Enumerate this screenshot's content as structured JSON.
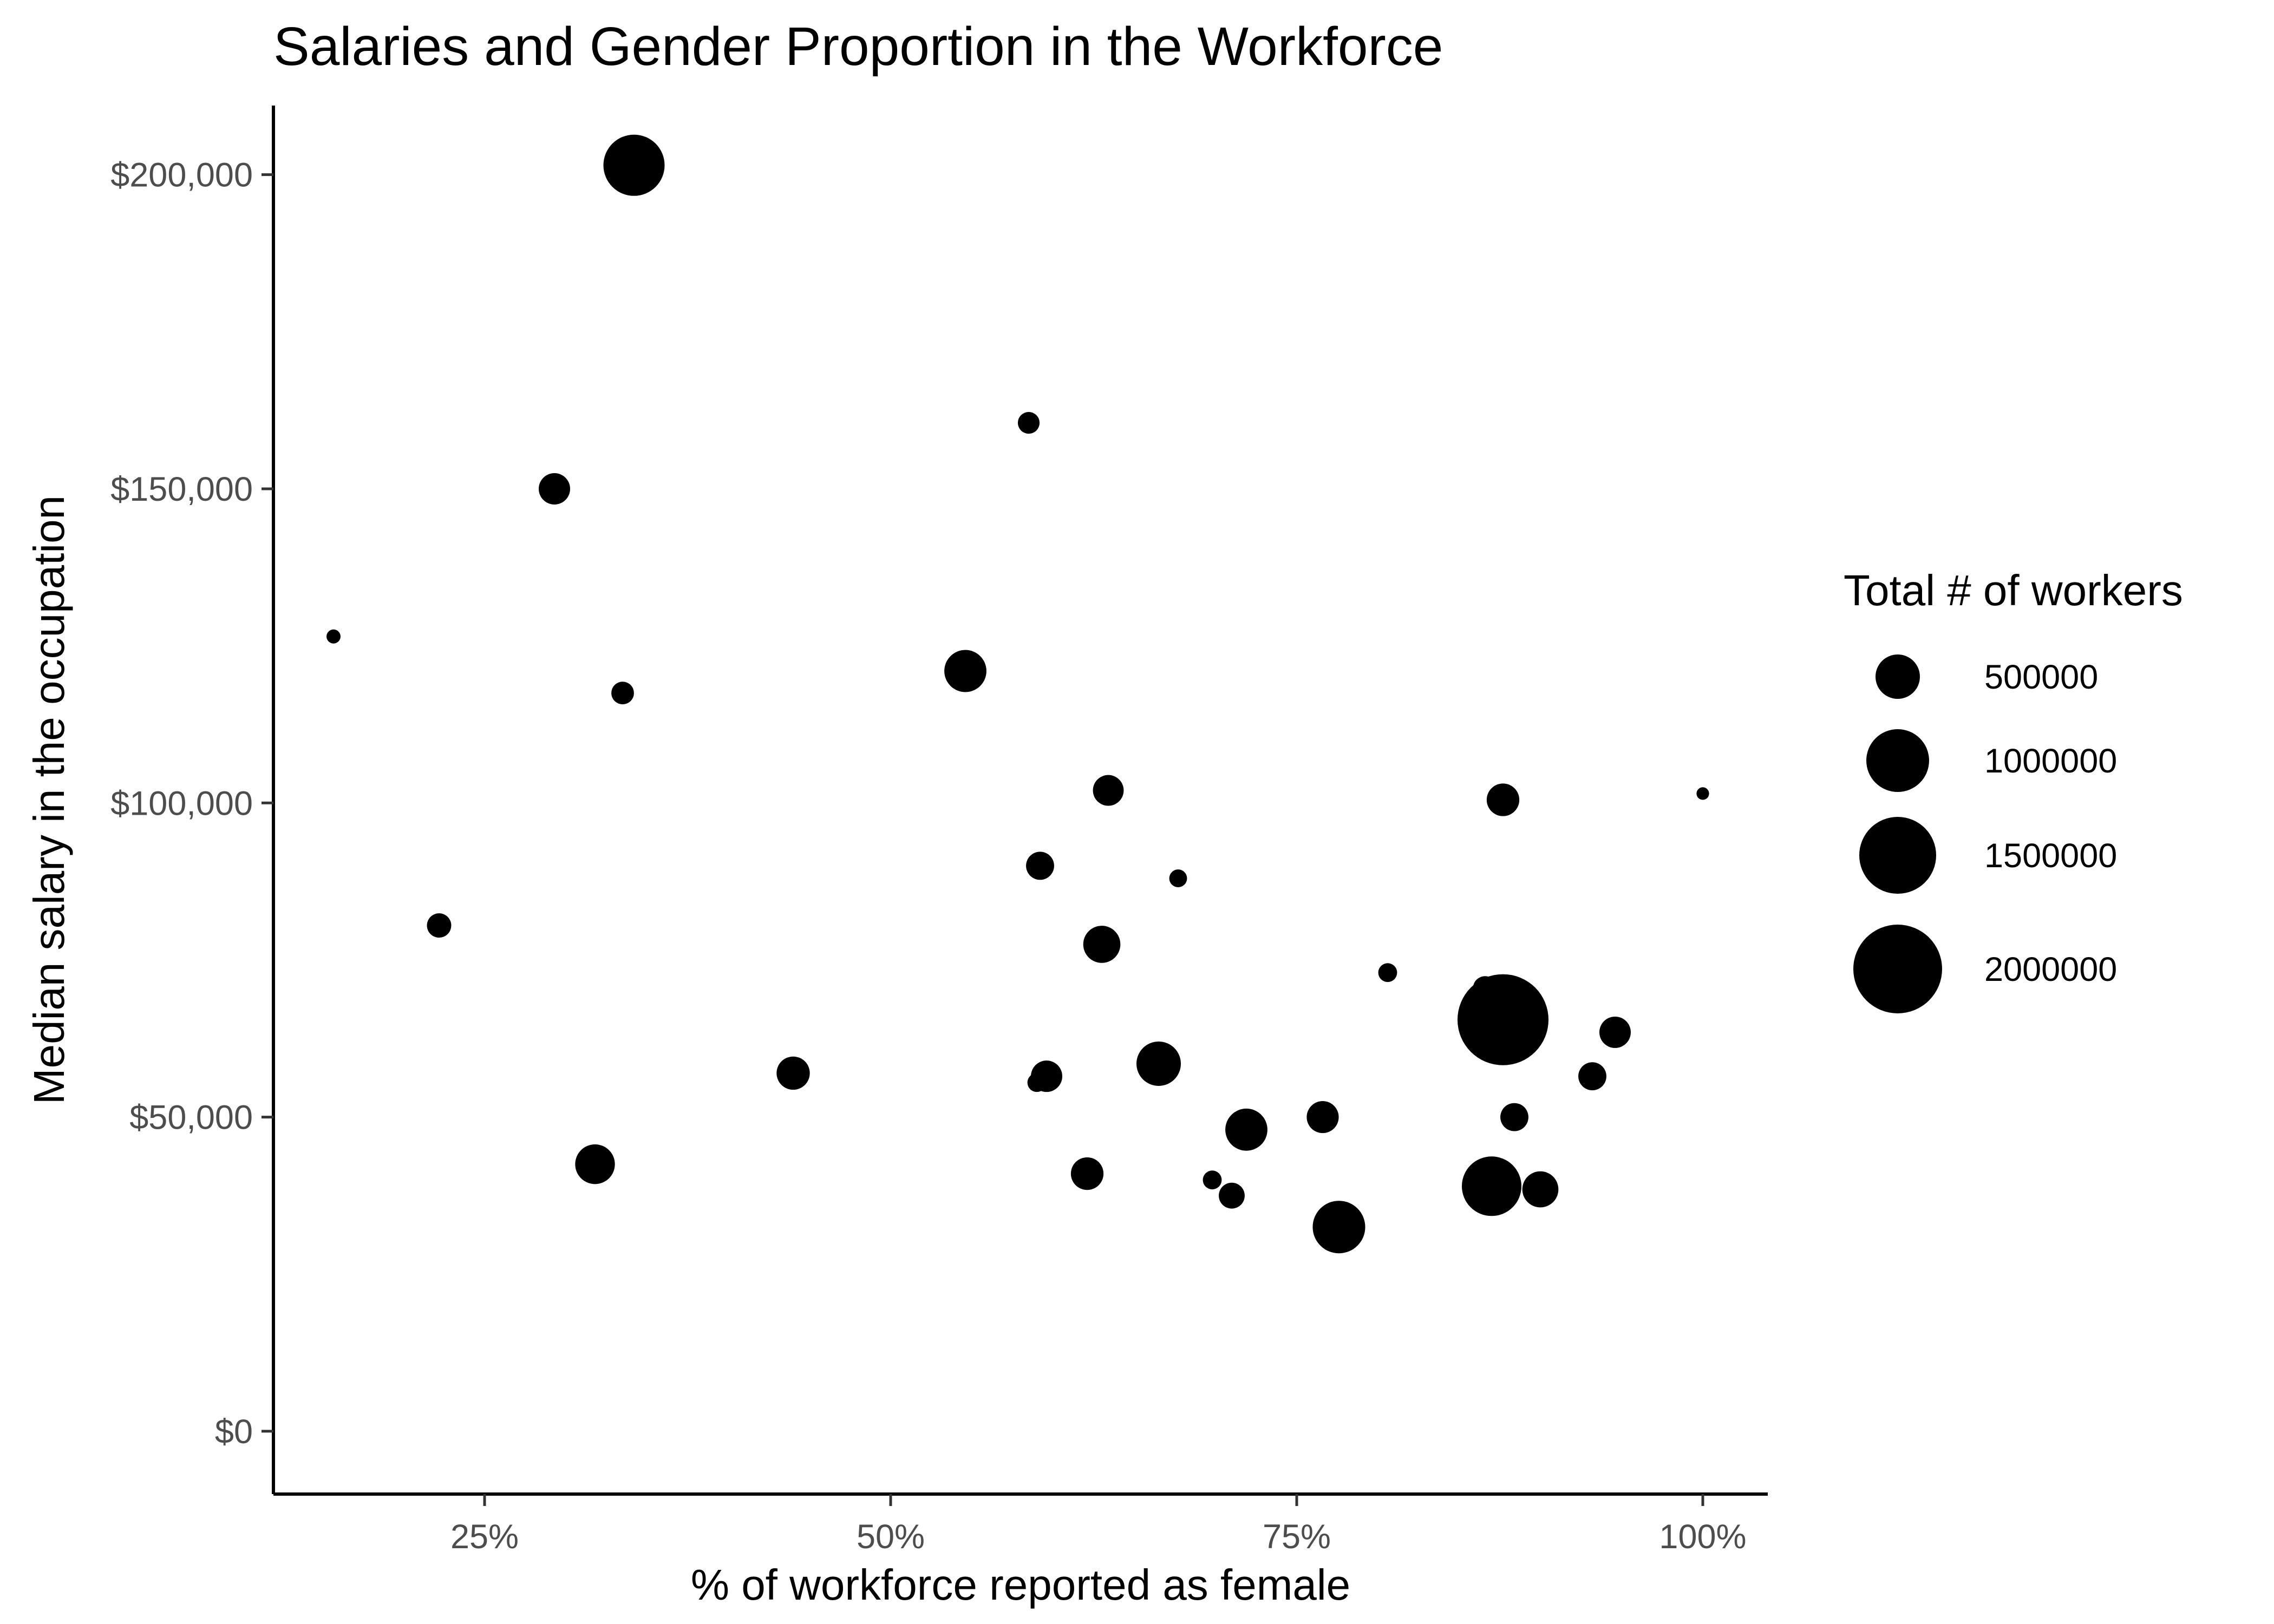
{
  "chart_data": {
    "type": "scatter",
    "title": "Salaries and Gender Proportion in the Workforce",
    "xlabel": "% of workforce reported as female",
    "ylabel": "Median salary in the occupation",
    "xlim": [
      0.12,
      1.04
    ],
    "ylim": [
      -10000,
      211000
    ],
    "x_ticks": [
      {
        "value": 0.25,
        "label": "25%"
      },
      {
        "value": 0.5,
        "label": "50%"
      },
      {
        "value": 0.75,
        "label": "75%"
      },
      {
        "value": 1.0,
        "label": "100%"
      }
    ],
    "y_ticks": [
      {
        "value": 0,
        "label": "$0"
      },
      {
        "value": 50000,
        "label": "$50,000"
      },
      {
        "value": 100000,
        "label": "$100,000"
      },
      {
        "value": 150000,
        "label": "$150,000"
      },
      {
        "value": 200000,
        "label": "$200,000"
      }
    ],
    "grid": false,
    "size_legend": {
      "title": "Total # of workers",
      "placement": "right",
      "entries": [
        {
          "value": 500000,
          "label": "500000"
        },
        {
          "value": 1000000,
          "label": "1000000"
        },
        {
          "value": 1500000,
          "label": "1500000"
        },
        {
          "value": 2000000,
          "label": "2000000"
        }
      ]
    },
    "size_max_value": 2000000,
    "points": [
      {
        "x": 0.342,
        "y": 201500,
        "size": 950000
      },
      {
        "x": 0.293,
        "y": 150000,
        "size": 250000
      },
      {
        "x": 0.157,
        "y": 126500,
        "size": 50000
      },
      {
        "x": 0.335,
        "y": 117500,
        "size": 130000
      },
      {
        "x": 0.222,
        "y": 80500,
        "size": 150000
      },
      {
        "x": 0.318,
        "y": 42500,
        "size": 400000
      },
      {
        "x": 0.44,
        "y": 57000,
        "size": 280000
      },
      {
        "x": 0.546,
        "y": 121000,
        "size": 450000
      },
      {
        "x": 0.585,
        "y": 160500,
        "size": 120000
      },
      {
        "x": 0.634,
        "y": 102000,
        "size": 240000
      },
      {
        "x": 0.592,
        "y": 90000,
        "size": 200000
      },
      {
        "x": 0.677,
        "y": 88000,
        "size": 80000
      },
      {
        "x": 0.63,
        "y": 77500,
        "size": 350000
      },
      {
        "x": 0.59,
        "y": 55500,
        "size": 90000
      },
      {
        "x": 0.596,
        "y": 56500,
        "size": 250000
      },
      {
        "x": 0.665,
        "y": 58500,
        "size": 500000
      },
      {
        "x": 0.621,
        "y": 41000,
        "size": 270000
      },
      {
        "x": 0.698,
        "y": 40000,
        "size": 90000
      },
      {
        "x": 0.71,
        "y": 37500,
        "size": 170000
      },
      {
        "x": 0.719,
        "y": 48000,
        "size": 450000
      },
      {
        "x": 0.766,
        "y": 50000,
        "size": 260000
      },
      {
        "x": 0.776,
        "y": 32500,
        "size": 700000
      },
      {
        "x": 0.806,
        "y": 73000,
        "size": 90000
      },
      {
        "x": 0.866,
        "y": 70500,
        "size": 150000
      },
      {
        "x": 0.877,
        "y": 65500,
        "size": 2100000
      },
      {
        "x": 0.87,
        "y": 39000,
        "size": 900000
      },
      {
        "x": 0.877,
        "y": 100500,
        "size": 270000
      },
      {
        "x": 0.884,
        "y": 50000,
        "size": 200000
      },
      {
        "x": 0.9,
        "y": 38500,
        "size": 330000
      },
      {
        "x": 0.932,
        "y": 56500,
        "size": 200000
      },
      {
        "x": 0.946,
        "y": 63500,
        "size": 250000
      },
      {
        "x": 1.0,
        "y": 101500,
        "size": 40000
      }
    ]
  }
}
